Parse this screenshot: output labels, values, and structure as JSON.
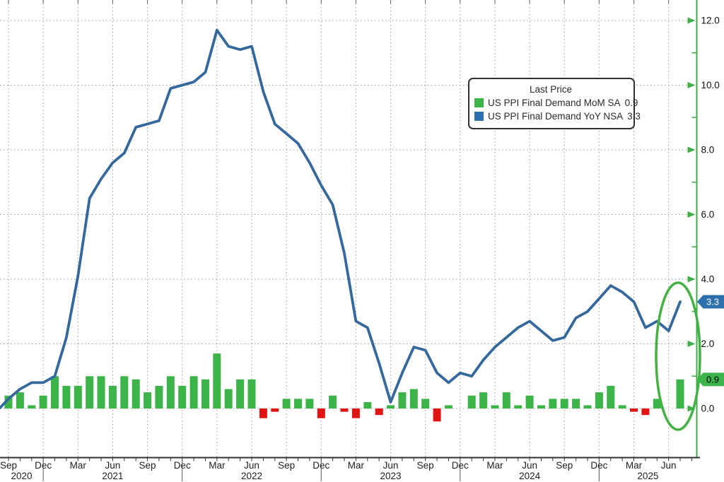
{
  "legend": {
    "title": "Last Price",
    "items": [
      {
        "label": "US PPI Final Demand MoM SA",
        "value": "0.9"
      },
      {
        "label": "US PPI Final Demand YoY NSA",
        "value": "3.3"
      }
    ]
  },
  "colors": {
    "bar_positive": "#3cb44a",
    "bar_negative": "#e11414",
    "line": "#35689d",
    "axis_green": "#3fae49",
    "badge_yoy_bg": "#2e6fad",
    "badge_yoy_text": "#ffffff",
    "badge_mom_bg": "#3cb44a",
    "badge_mom_text": "#000000",
    "grid": "#9a9a9a",
    "ellipse": "#44b143",
    "bottom_axis": "#333333"
  },
  "chart_data": {
    "type": "mixed-bar-line",
    "x_start_month": "Sep 2020",
    "x_end_month": "Jul 2025",
    "x_tick_labels": [
      "Sep",
      "Dec",
      "Mar",
      "Jun",
      "Sep",
      "Dec",
      "Mar",
      "Jun",
      "Sep",
      "Dec",
      "Mar",
      "Jun",
      "Sep",
      "Dec",
      "Mar",
      "Jun",
      "Sep",
      "Dec",
      "Mar",
      "Jun"
    ],
    "year_labels": [
      "2020",
      "2021",
      "2022",
      "2023",
      "2024",
      "2025"
    ],
    "y_major_ticks": [
      0.0,
      2.0,
      4.0,
      6.0,
      8.0,
      10.0,
      12.0
    ],
    "y_minor_step": 1.0,
    "ylim": [
      -1.5,
      12.6
    ],
    "grid": "dotted",
    "legend_position": "upper-right-inside",
    "series": [
      {
        "name": "US PPI Final Demand MoM SA",
        "type": "bar",
        "last_price": 0.9,
        "values": [
          0.4,
          0.5,
          0.1,
          0.4,
          1.0,
          0.7,
          0.7,
          1.0,
          1.0,
          0.7,
          1.0,
          0.9,
          0.5,
          0.7,
          1.0,
          0.7,
          1.0,
          0.9,
          1.7,
          0.6,
          0.9,
          0.9,
          -0.3,
          -0.1,
          0.3,
          0.3,
          0.3,
          -0.3,
          0.4,
          -0.1,
          -0.3,
          0.2,
          -0.2,
          0.1,
          0.5,
          0.6,
          0.3,
          -0.4,
          0.1,
          0.0,
          0.4,
          0.5,
          0.1,
          0.5,
          0.1,
          0.4,
          0.1,
          0.3,
          0.3,
          0.3,
          0.1,
          0.5,
          0.7,
          0.1,
          -0.1,
          -0.2,
          0.3,
          0.0,
          0.9
        ]
      },
      {
        "name": "US PPI Final Demand YoY NSA",
        "type": "line",
        "last_price": 3.3,
        "values": [
          0.3,
          0.6,
          0.8,
          0.8,
          1.0,
          2.2,
          4.1,
          6.5,
          7.1,
          7.6,
          7.9,
          8.7,
          8.8,
          8.9,
          9.9,
          10.0,
          10.1,
          10.4,
          11.7,
          11.2,
          11.1,
          11.2,
          9.8,
          8.8,
          8.5,
          8.2,
          7.6,
          6.9,
          6.3,
          4.8,
          2.7,
          2.5,
          1.4,
          0.2,
          1.1,
          1.9,
          1.8,
          1.1,
          0.8,
          1.1,
          1.0,
          1.5,
          1.9,
          2.2,
          2.5,
          2.7,
          2.4,
          2.1,
          2.2,
          2.8,
          3.0,
          3.4,
          3.8,
          3.6,
          3.3,
          2.5,
          2.7,
          2.4,
          3.3
        ]
      }
    ],
    "last_price_badges": [
      {
        "value": "3.3",
        "series": "US PPI Final Demand YoY NSA"
      },
      {
        "value": "0.9",
        "series": "US PPI Final Demand MoM SA"
      }
    ],
    "annotations": [
      {
        "type": "ellipse",
        "note": "highlights final two months (Jun-Jul 2025)"
      }
    ]
  }
}
